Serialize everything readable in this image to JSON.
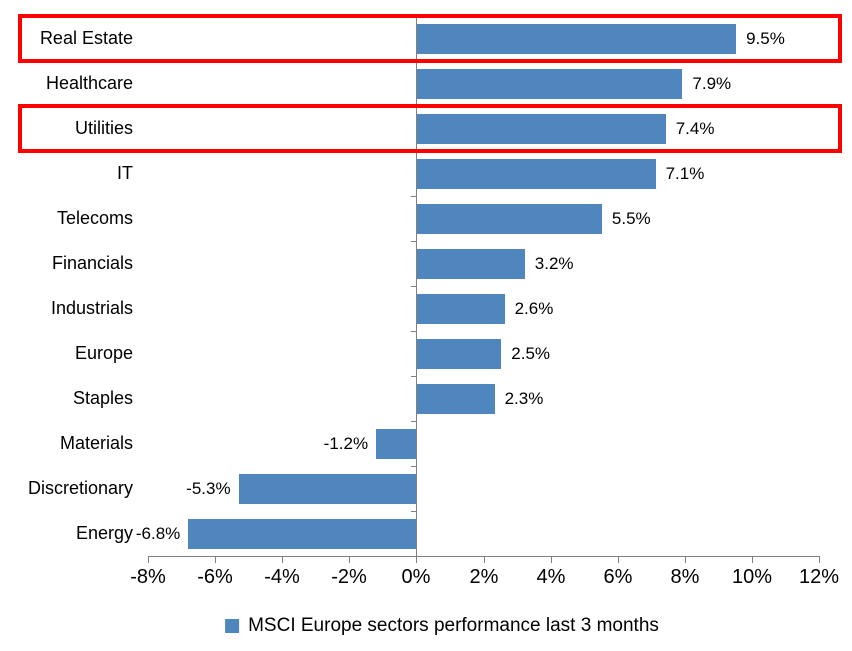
{
  "chart_data": {
    "type": "bar",
    "orientation": "horizontal",
    "categories": [
      "Real Estate",
      "Healthcare",
      "Utilities",
      "IT",
      "Telecoms",
      "Financials",
      "Industrials",
      "Europe",
      "Staples",
      "Materials",
      "Discretionary",
      "Energy"
    ],
    "values": [
      9.5,
      7.9,
      7.4,
      7.1,
      5.5,
      3.2,
      2.6,
      2.5,
      2.3,
      -1.2,
      -5.3,
      -6.8
    ],
    "value_labels": [
      "9.5%",
      "7.9%",
      "7.4%",
      "7.1%",
      "5.5%",
      "3.2%",
      "2.6%",
      "2.5%",
      "2.3%",
      "-1.2%",
      "-5.3%",
      "-6.8%"
    ],
    "xlim": [
      -8,
      12
    ],
    "x_tick_values": [
      -8,
      -6,
      -4,
      -2,
      0,
      2,
      4,
      6,
      8,
      10,
      12
    ],
    "x_tick_labels": [
      "-8%",
      "-6%",
      "-4%",
      "-2%",
      "0%",
      "2%",
      "4%",
      "6%",
      "8%",
      "10%",
      "12%"
    ],
    "grid": false,
    "legend": {
      "label": "MSCI Europe sectors performance last 3 months",
      "position": "bottom"
    },
    "colors": {
      "bar": "#4F86BD",
      "axis": "#808080",
      "highlight": "#FF0000",
      "text": "#000000"
    },
    "highlighted_rows": [
      0,
      2
    ]
  }
}
